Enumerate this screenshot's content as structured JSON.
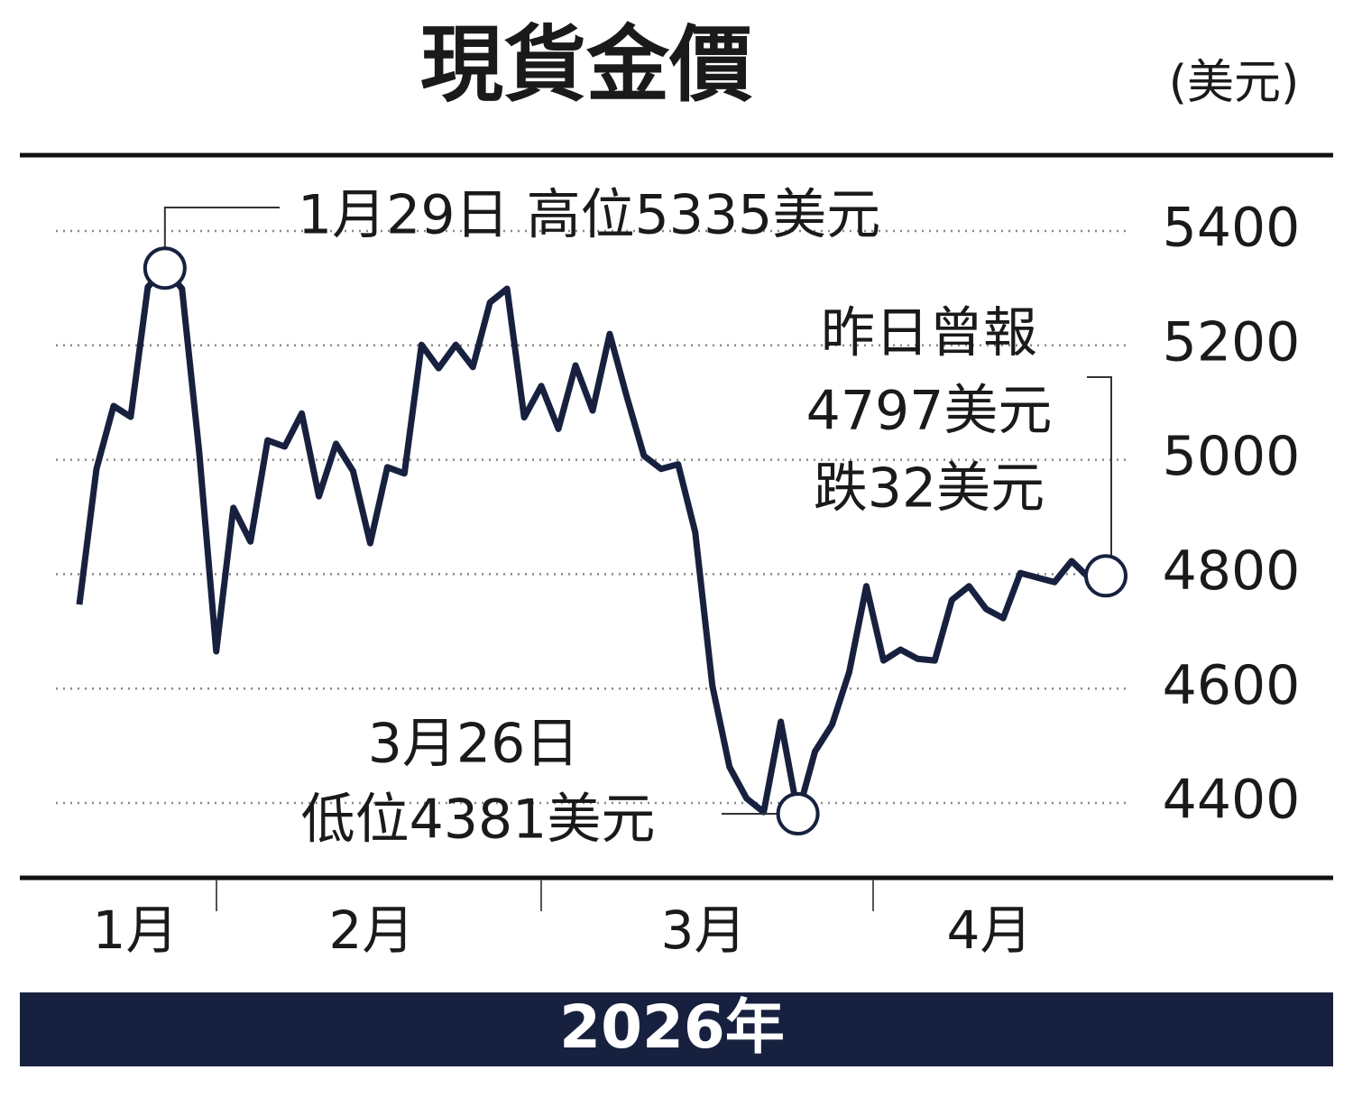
{
  "chart_data": {
    "type": "line",
    "title": "現貨金價",
    "unit": "(美元)",
    "x_title": "2026年",
    "months": [
      "1月",
      "2月",
      "3月",
      "4月"
    ],
    "values": [
      4747,
      4984,
      5094,
      5075,
      5302,
      5335,
      5299,
      5015,
      4665,
      4916,
      4857,
      5034,
      5023,
      5081,
      4936,
      5028,
      4980,
      4854,
      4987,
      4976,
      5201,
      5160,
      5201,
      5162,
      5275,
      5299,
      5074,
      5129,
      5054,
      5165,
      5086,
      5220,
      5110,
      5007,
      4984,
      4992,
      4873,
      4605,
      4463,
      4408,
      4384,
      4542,
      4381,
      4490,
      4537,
      4629,
      4779,
      4649,
      4668,
      4652,
      4649,
      4755,
      4779,
      4739,
      4723,
      4802,
      4794,
      4786,
      4823,
      4794,
      4797
    ],
    "color": "#17213f",
    "ylim": [
      4300,
      5480
    ],
    "yticks": [
      4400,
      4600,
      4800,
      5000,
      5200,
      5400
    ],
    "grid": true,
    "annotations": {
      "high": [
        "1月29日 高位5335美元"
      ],
      "low": [
        "3月26日",
        "低位4381美元"
      ],
      "last": [
        "昨日曾報",
        "4797美元",
        "跌32美元"
      ]
    }
  }
}
